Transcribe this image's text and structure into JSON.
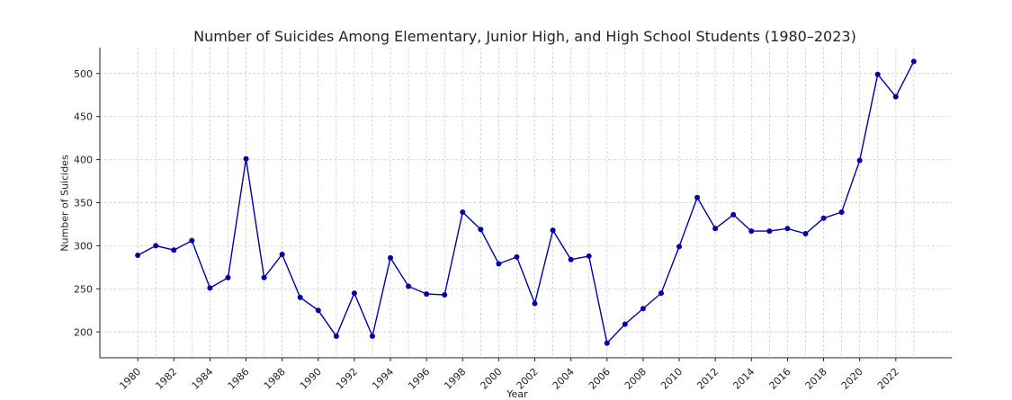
{
  "chart_data": {
    "type": "line",
    "title": "Number of Suicides Among Elementary, Junior High, and High School Students (1980–2023)",
    "xlabel": "Year",
    "ylabel": "Number of Suicides",
    "x": [
      1980,
      1981,
      1982,
      1983,
      1984,
      1985,
      1986,
      1987,
      1988,
      1989,
      1990,
      1991,
      1992,
      1993,
      1994,
      1995,
      1996,
      1997,
      1998,
      1999,
      2000,
      2001,
      2002,
      2003,
      2004,
      2005,
      2006,
      2007,
      2008,
      2009,
      2010,
      2011,
      2012,
      2013,
      2014,
      2015,
      2016,
      2017,
      2018,
      2019,
      2020,
      2021,
      2022,
      2023
    ],
    "series": [
      {
        "name": "",
        "values": [
          289,
          300,
          295,
          306,
          251,
          263,
          401,
          263,
          290,
          240,
          225,
          195,
          245,
          195,
          286,
          253,
          244,
          243,
          339,
          319,
          279,
          287,
          233,
          318,
          284,
          288,
          187,
          209,
          227,
          245,
          299,
          356,
          320,
          336,
          317,
          317,
          320,
          314,
          332,
          339,
          399,
          499,
          473,
          514
        ],
        "color": "#0000a8"
      }
    ],
    "xticks": [
      "1980",
      "1982",
      "1984",
      "1986",
      "1988",
      "1990",
      "1992",
      "1994",
      "1996",
      "1998",
      "2000",
      "2002",
      "2004",
      "2006",
      "2008",
      "2010",
      "2012",
      "2014",
      "2016",
      "2018",
      "2020",
      "2022"
    ],
    "yticks": [
      "200",
      "250",
      "300",
      "350",
      "400",
      "450",
      "500"
    ],
    "xlim": [
      1977.9,
      2025.1
    ],
    "ylim": [
      170,
      530
    ],
    "grid": true,
    "legend": "none"
  }
}
